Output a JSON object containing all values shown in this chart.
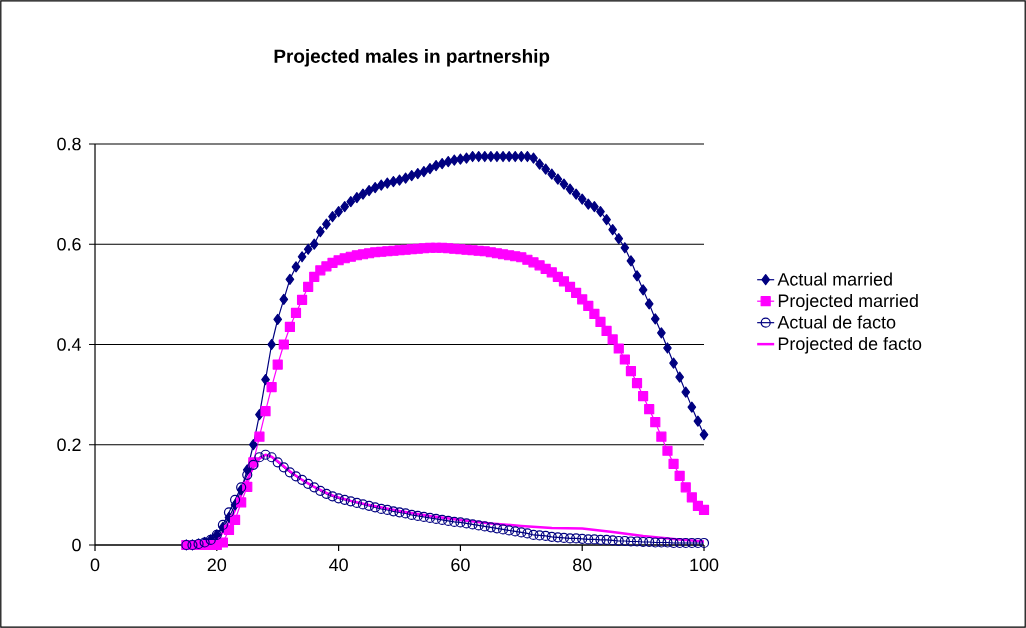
{
  "chart_data": {
    "type": "line",
    "title": "Projected males in partnership",
    "x": [
      15,
      16,
      17,
      18,
      19,
      20,
      21,
      22,
      23,
      24,
      25,
      26,
      27,
      28,
      29,
      30,
      31,
      32,
      33,
      34,
      35,
      36,
      37,
      38,
      39,
      40,
      41,
      42,
      43,
      44,
      45,
      46,
      47,
      48,
      49,
      50,
      51,
      52,
      53,
      54,
      55,
      56,
      57,
      58,
      59,
      60,
      61,
      62,
      63,
      64,
      65,
      66,
      67,
      68,
      69,
      70,
      71,
      72,
      73,
      74,
      75,
      76,
      77,
      78,
      79,
      80,
      81,
      82,
      83,
      84,
      85,
      86,
      87,
      88,
      89,
      90,
      91,
      92,
      93,
      94,
      95,
      96,
      97,
      98,
      99,
      100
    ],
    "series": [
      {
        "name": "Actual married",
        "color": "#000080",
        "marker": "diamond",
        "values": [
          0,
          0,
          0.002,
          0.005,
          0.01,
          0.02,
          0.035,
          0.055,
          0.08,
          0.11,
          0.15,
          0.2,
          0.26,
          0.33,
          0.4,
          0.45,
          0.49,
          0.53,
          0.555,
          0.575,
          0.59,
          0.6,
          0.625,
          0.64,
          0.655,
          0.665,
          0.675,
          0.685,
          0.693,
          0.7,
          0.707,
          0.713,
          0.718,
          0.722,
          0.725,
          0.728,
          0.732,
          0.737,
          0.741,
          0.745,
          0.751,
          0.757,
          0.761,
          0.765,
          0.768,
          0.77,
          0.772,
          0.775,
          0.775,
          0.775,
          0.775,
          0.775,
          0.775,
          0.775,
          0.775,
          0.775,
          0.775,
          0.772,
          0.76,
          0.75,
          0.74,
          0.73,
          0.72,
          0.71,
          0.7,
          0.69,
          0.68,
          0.675,
          0.665,
          0.649,
          0.629,
          0.611,
          0.593,
          0.567,
          0.537,
          0.509,
          0.481,
          0.451,
          0.423,
          0.393,
          0.363,
          0.335,
          0.305,
          0.275,
          0.247,
          0.22
        ]
      },
      {
        "name": "Projected married",
        "color": "#ff00ff",
        "marker": "square",
        "values": [
          0,
          0,
          0,
          0,
          0,
          0,
          0.005,
          0.03,
          0.05,
          0.085,
          0.116,
          0.165,
          0.216,
          0.267,
          0.315,
          0.36,
          0.4,
          0.435,
          0.463,
          0.489,
          0.515,
          0.535,
          0.548,
          0.556,
          0.563,
          0.568,
          0.572,
          0.575,
          0.578,
          0.58,
          0.582,
          0.584,
          0.585,
          0.586,
          0.587,
          0.588,
          0.589,
          0.59,
          0.591,
          0.592,
          0.593,
          0.593,
          0.593,
          0.592,
          0.591,
          0.59,
          0.589,
          0.588,
          0.587,
          0.586,
          0.584,
          0.582,
          0.58,
          0.578,
          0.576,
          0.574,
          0.569,
          0.564,
          0.558,
          0.551,
          0.544,
          0.535,
          0.526,
          0.515,
          0.503,
          0.49,
          0.477,
          0.461,
          0.445,
          0.427,
          0.41,
          0.392,
          0.37,
          0.347,
          0.323,
          0.297,
          0.271,
          0.245,
          0.216,
          0.188,
          0.162,
          0.138,
          0.115,
          0.095,
          0.078,
          0.07
        ]
      },
      {
        "name": "Actual de facto",
        "color": "#000080",
        "marker": "circle",
        "values": [
          0,
          0,
          0.002,
          0.005,
          0.01,
          0.02,
          0.04,
          0.065,
          0.09,
          0.115,
          0.14,
          0.16,
          0.175,
          0.18,
          0.175,
          0.165,
          0.155,
          0.145,
          0.137,
          0.13,
          0.122,
          0.115,
          0.108,
          0.102,
          0.097,
          0.093,
          0.09,
          0.087,
          0.084,
          0.081,
          0.078,
          0.075,
          0.072,
          0.07,
          0.067,
          0.065,
          0.063,
          0.06,
          0.058,
          0.056,
          0.054,
          0.052,
          0.05,
          0.048,
          0.046,
          0.045,
          0.043,
          0.041,
          0.039,
          0.037,
          0.035,
          0.033,
          0.031,
          0.029,
          0.027,
          0.025,
          0.023,
          0.02,
          0.019,
          0.018,
          0.016,
          0.015,
          0.014,
          0.013,
          0.013,
          0.012,
          0.011,
          0.011,
          0.01,
          0.01,
          0.009,
          0.008,
          0.008,
          0.007,
          0.007,
          0.006,
          0.006,
          0.005,
          0.005,
          0.005,
          0.004,
          0.004,
          0.004,
          0.004,
          0.004,
          0.004
        ]
      },
      {
        "name": "Projected de facto",
        "color": "#ff00ff",
        "marker": "none",
        "x": [
          15,
          16,
          17,
          18,
          19,
          20,
          21,
          22,
          23,
          24,
          25,
          26,
          27,
          28,
          29,
          30,
          31,
          32,
          33,
          34,
          35,
          36,
          37,
          38,
          39,
          40,
          42,
          45,
          50,
          55,
          60,
          65,
          70,
          75,
          80,
          85,
          90,
          95,
          100
        ],
        "values": [
          0,
          0,
          0,
          0.002,
          0.005,
          0.012,
          0.025,
          0.045,
          0.07,
          0.1,
          0.13,
          0.155,
          0.172,
          0.18,
          0.176,
          0.167,
          0.157,
          0.147,
          0.138,
          0.13,
          0.123,
          0.116,
          0.11,
          0.104,
          0.099,
          0.095,
          0.088,
          0.08,
          0.068,
          0.058,
          0.05,
          0.043,
          0.038,
          0.034,
          0.033,
          0.026,
          0.018,
          0.012,
          0.007
        ]
      }
    ],
    "xlim": [
      0,
      100
    ],
    "xticks": [
      0,
      20,
      40,
      60,
      80,
      100
    ],
    "ylim": [
      0,
      0.8
    ],
    "yticks": [
      0,
      0.2,
      0.4,
      0.6,
      0.8
    ],
    "grid": "y",
    "legend": "right"
  }
}
